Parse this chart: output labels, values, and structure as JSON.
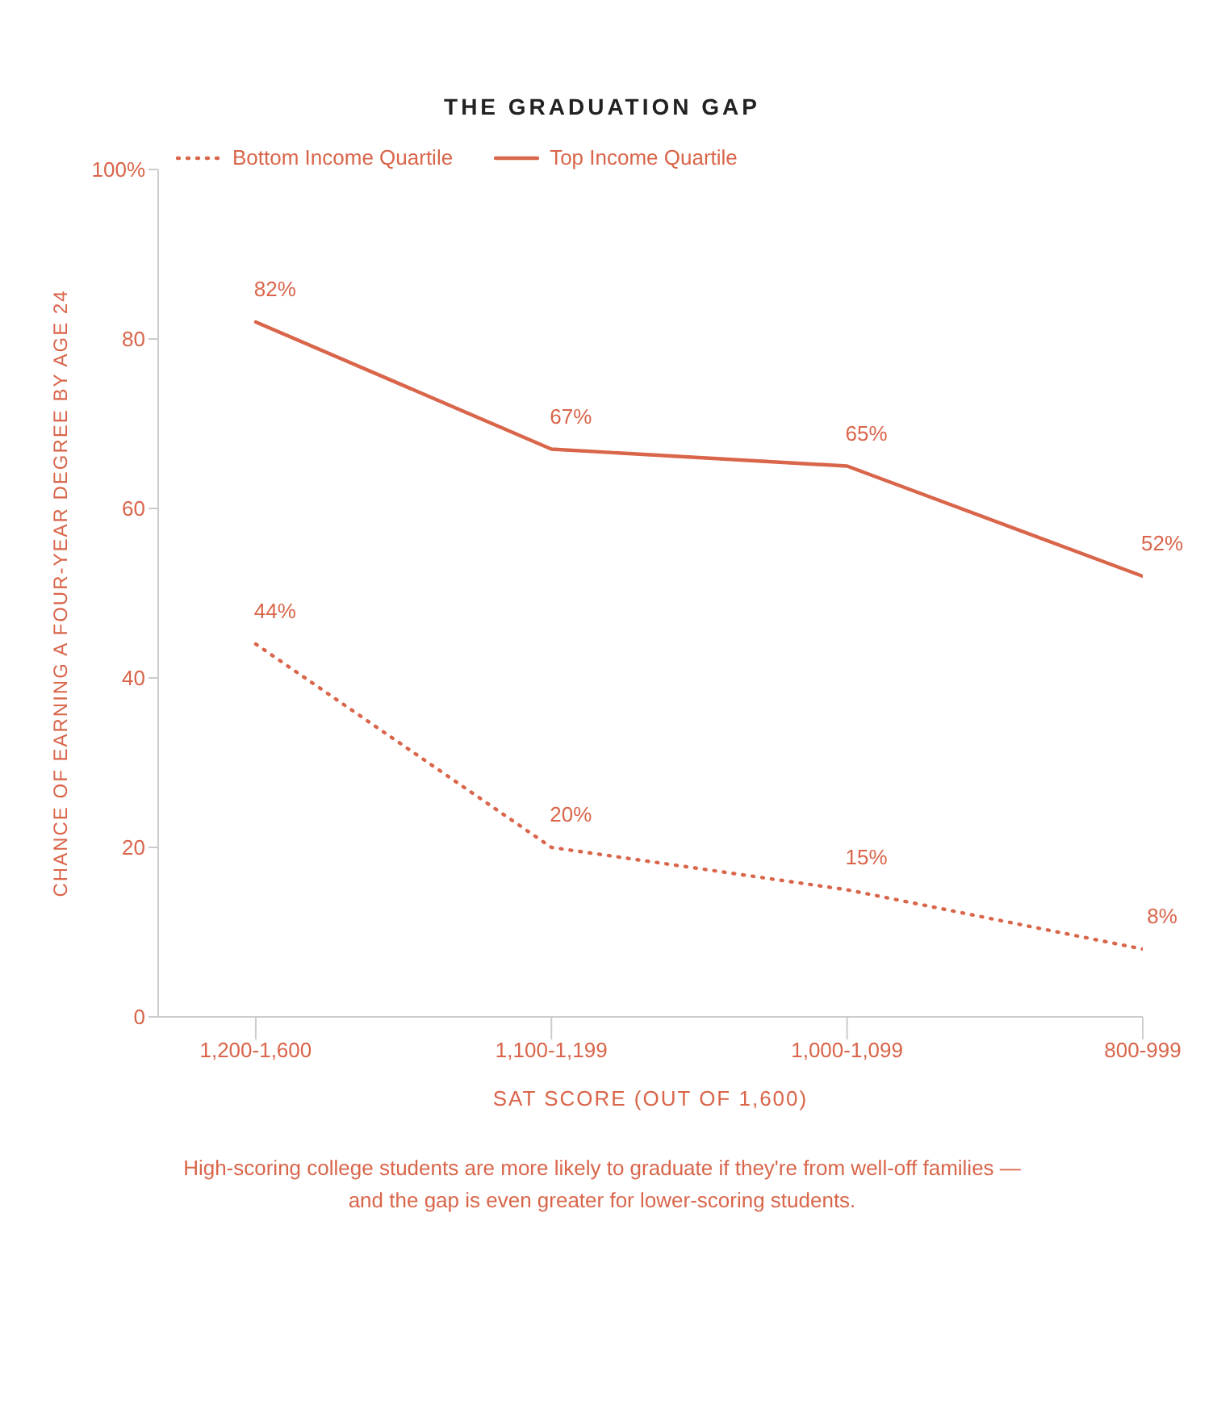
{
  "chart_data": {
    "type": "line",
    "title": "THE GRADUATION GAP",
    "xlabel": "SAT SCORE (OUT OF 1,600)",
    "ylabel": "CHANCE OF EARNING A FOUR-YEAR DEGREE BY AGE 24",
    "categories": [
      "1,200-1,600",
      "1,100-1,199",
      "1,000-1,099",
      "800-999"
    ],
    "series": [
      {
        "name": "Bottom Income Quartile",
        "color": "#d9654a",
        "line_style": "dotted",
        "values": [
          44,
          20,
          15,
          8
        ],
        "value_labels": [
          "44%",
          "20%",
          "15%",
          "8%"
        ]
      },
      {
        "name": "Top Income Quartile",
        "color": "#d9654a",
        "line_style": "solid",
        "values": [
          82,
          67,
          65,
          52
        ],
        "value_labels": [
          "82%",
          "67%",
          "65%",
          "52%"
        ]
      }
    ],
    "ylim": [
      0,
      100
    ],
    "yticks": [
      0,
      20,
      40,
      60,
      80,
      {
        "value": 100,
        "label": "100%"
      }
    ],
    "grid": false,
    "legend": "top",
    "marker": "none",
    "annotations": [
      "High-scoring college students are more likely to graduate if they're from well-off families — and the gap is even greater for lower-scoring students."
    ]
  }
}
